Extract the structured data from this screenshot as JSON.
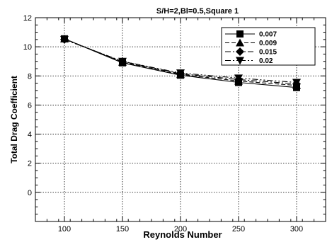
{
  "chart_data": {
    "type": "line",
    "title": "S/H=2,Bl=0.5,Square 1",
    "xlabel": "Reynolds Number",
    "ylabel": "Total Drag Coefficient",
    "x": [
      100,
      150,
      200,
      250,
      300
    ],
    "xlim": [
      75,
      325
    ],
    "ylim": [
      -2,
      12
    ],
    "xticks": [
      100,
      150,
      200,
      250,
      300
    ],
    "yticks": [
      0,
      2,
      4,
      6,
      8,
      10,
      12
    ],
    "grid": true,
    "legend_position": "top-right",
    "series": [
      {
        "name": "0.007",
        "values": [
          10.55,
          8.9,
          8.05,
          7.55,
          7.2
        ],
        "marker": "square",
        "dash": "solid"
      },
      {
        "name": "0.009",
        "values": [
          10.55,
          8.95,
          8.1,
          7.65,
          7.35
        ],
        "marker": "triangle-up",
        "dash": "dashed"
      },
      {
        "name": "0.015",
        "values": [
          10.5,
          9.0,
          8.15,
          7.75,
          7.45
        ],
        "marker": "diamond",
        "dash": "dashdot"
      },
      {
        "name": "0.02",
        "values": [
          10.5,
          9.0,
          8.2,
          7.85,
          7.55
        ],
        "marker": "triangle-down",
        "dash": "dashdotdot"
      }
    ]
  }
}
